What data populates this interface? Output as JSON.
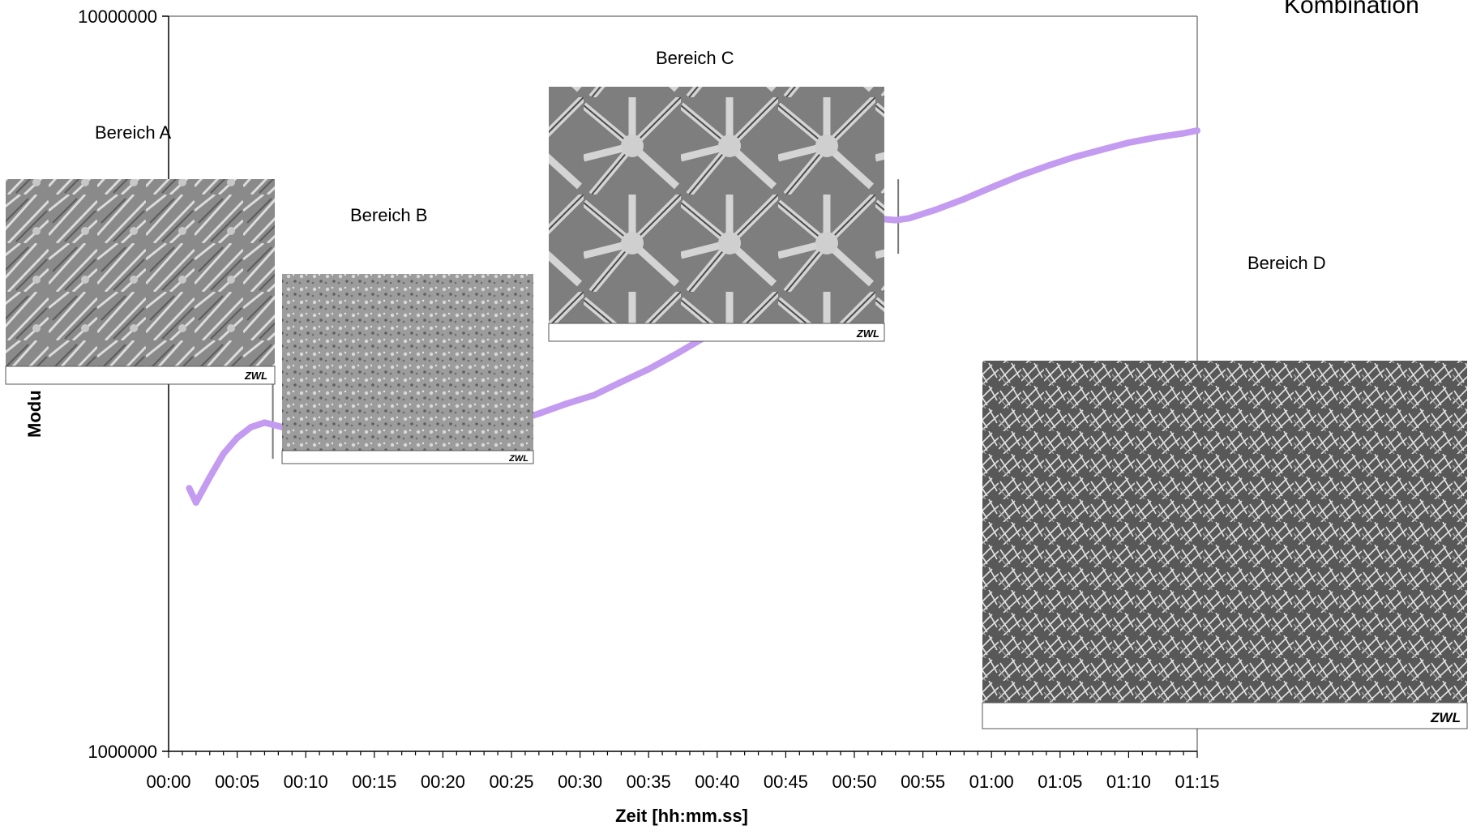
{
  "chart_data": {
    "type": "line",
    "title": "Kombination",
    "xlabel": "Zeit [hh:mm.ss]",
    "ylabel": "Modu",
    "y_scale": "log",
    "ylim": [
      1000000,
      10000000
    ],
    "y_ticks": [
      "1000000",
      "10000000"
    ],
    "x_ticks": [
      "00:00",
      "00:05",
      "00:10",
      "00:15",
      "00:20",
      "00:25",
      "00:30",
      "00:35",
      "00:40",
      "00:45",
      "00:50",
      "00:55",
      "01:00",
      "01:05",
      "01:10",
      "01:15"
    ],
    "xlim_minutes": [
      0,
      75
    ],
    "grid": false,
    "series": [
      {
        "color": "#c39bf0",
        "x_minutes": [
          1.5,
          2,
          3,
          4,
          5,
          6,
          7,
          8,
          9,
          10,
          12,
          14,
          16,
          18,
          20,
          22,
          24,
          25,
          27,
          29,
          31,
          33,
          35,
          37,
          39,
          41,
          43,
          45,
          47,
          49,
          51,
          52,
          53,
          54,
          56,
          58,
          60,
          62,
          64,
          66,
          68,
          70,
          72,
          74,
          75
        ],
        "y": [
          2280000,
          2180000,
          2360000,
          2540000,
          2670000,
          2760000,
          2800000,
          2770000,
          2740000,
          2750000,
          2800000,
          2840000,
          2820000,
          2770000,
          2760000,
          2740000,
          2770000,
          2800000,
          2880000,
          2970000,
          3050000,
          3180000,
          3310000,
          3470000,
          3650000,
          3880000,
          4120000,
          4380000,
          4660000,
          4940000,
          5180000,
          5300000,
          5280000,
          5310000,
          5460000,
          5640000,
          5850000,
          6060000,
          6250000,
          6430000,
          6580000,
          6730000,
          6840000,
          6930000,
          6990000
        ]
      }
    ],
    "region_boundaries_minutes": [
      7.6,
      25,
      53.2
    ],
    "regions": [
      {
        "label": "Bereich A"
      },
      {
        "label": "Bereich B"
      },
      {
        "label": "Bereich C"
      },
      {
        "label": "Bereich D"
      }
    ],
    "micrograph_watermark": "ZWL"
  }
}
